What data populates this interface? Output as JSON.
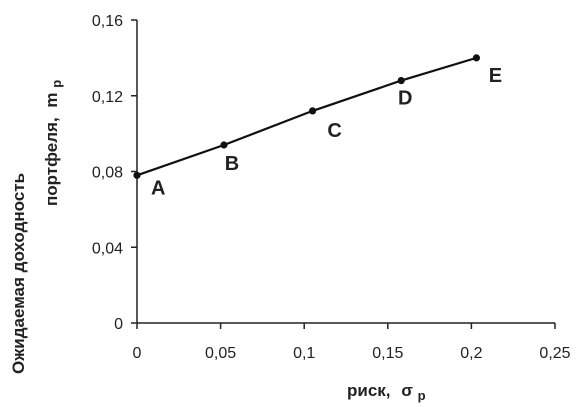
{
  "chart_data": {
    "type": "line",
    "xlabel": "риск,",
    "xlabel_symbol": "σ",
    "xlabel_subscript": "p",
    "ylabel_line1": "Ожидаемая доходность",
    "ylabel_line2": "портфеля,",
    "ylabel_symbol": "m",
    "ylabel_subscript": "p",
    "xlim": [
      0,
      0.25
    ],
    "ylim": [
      0,
      0.16
    ],
    "x_ticks": [
      0,
      0.05,
      0.1,
      0.15,
      0.2,
      0.25
    ],
    "y_ticks": [
      0,
      0.04,
      0.08,
      0.12,
      0.16
    ],
    "x_tick_labels": [
      "0",
      "0,05",
      "0,1",
      "0,15",
      "0,2",
      "0,25"
    ],
    "y_tick_labels": [
      "0",
      "0,04",
      "0,08",
      "0,12",
      "0,16"
    ],
    "grid": false,
    "series": [
      {
        "points": [
          {
            "label": "A",
            "x": 0,
            "y": 0.078
          },
          {
            "label": "B",
            "x": 0.052,
            "y": 0.094
          },
          {
            "label": "C",
            "x": 0.105,
            "y": 0.112
          },
          {
            "label": "D",
            "x": 0.158,
            "y": 0.128
          },
          {
            "label": "E",
            "x": 0.203,
            "y": 0.14
          }
        ]
      }
    ],
    "colors": {
      "line": "#111111",
      "axis": "#222222",
      "text": "#222222"
    }
  }
}
